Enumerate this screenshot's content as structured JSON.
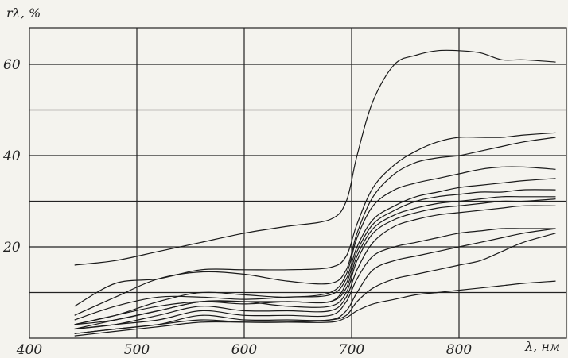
{
  "chart_data": {
    "type": "line",
    "title": "",
    "xlabel": "λ, нм",
    "ylabel": "rλ, %",
    "xlim": [
      400,
      900
    ],
    "ylim": [
      0,
      68
    ],
    "x_ticks": [
      {
        "value": 400,
        "label": "400"
      },
      {
        "value": 500,
        "label": "500"
      },
      {
        "value": 600,
        "label": "600"
      },
      {
        "value": 700,
        "label": "700"
      },
      {
        "value": 800,
        "label": "800"
      }
    ],
    "y_ticks": [
      {
        "value": 20,
        "label": "20"
      },
      {
        "value": 40,
        "label": "40"
      },
      {
        "value": 60,
        "label": "60"
      }
    ],
    "grid": true,
    "series": [
      {
        "x": [
          442,
          480,
          520,
          560,
          600,
          640,
          680,
          695,
          705,
          720,
          740,
          760,
          780,
          800,
          820,
          840,
          860,
          890
        ],
        "y": [
          16,
          17,
          19,
          21,
          23,
          24.5,
          26,
          30,
          40,
          52,
          60,
          62,
          63,
          63,
          62.5,
          61,
          61,
          60.5
        ]
      },
      {
        "x": [
          442,
          480,
          520,
          560,
          600,
          640,
          680,
          695,
          705,
          720,
          740,
          760,
          780,
          800,
          820,
          840,
          860,
          890
        ],
        "y": [
          7,
          12,
          13,
          15,
          15,
          15,
          15.5,
          18,
          25,
          33,
          38,
          41,
          43,
          44,
          44,
          44,
          44.5,
          45
        ]
      },
      {
        "x": [
          442,
          480,
          520,
          560,
          600,
          640,
          680,
          695,
          705,
          720,
          740,
          760,
          780,
          800,
          820,
          840,
          860,
          890
        ],
        "y": [
          5,
          9,
          13,
          14.5,
          14,
          12.5,
          12,
          15,
          23,
          31,
          36,
          38.5,
          39.5,
          40,
          41,
          42,
          43,
          44
        ]
      },
      {
        "x": [
          442,
          480,
          520,
          560,
          600,
          640,
          680,
          695,
          705,
          720,
          740,
          760,
          780,
          800,
          820,
          840,
          860,
          890
        ],
        "y": [
          3,
          5,
          8,
          10,
          9.5,
          9,
          10,
          14,
          22,
          29,
          32.5,
          34,
          35,
          36,
          37,
          37.5,
          37.5,
          37
        ]
      },
      {
        "x": [
          442,
          480,
          520,
          560,
          600,
          640,
          680,
          695,
          705,
          720,
          740,
          760,
          780,
          800,
          820,
          840,
          860,
          890
        ],
        "y": [
          4,
          7,
          9,
          9,
          8.5,
          9,
          9.5,
          13,
          20,
          26,
          29,
          31,
          32,
          33,
          33.5,
          34,
          34.5,
          35
        ]
      },
      {
        "x": [
          442,
          480,
          520,
          560,
          600,
          640,
          680,
          695,
          705,
          720,
          740,
          760,
          780,
          800,
          820,
          840,
          860,
          890
        ],
        "y": [
          3,
          5,
          7,
          8,
          7.5,
          8,
          8,
          12,
          19,
          25,
          28,
          30,
          31,
          31.5,
          32,
          32,
          32.5,
          32.5
        ]
      },
      {
        "x": [
          442,
          480,
          520,
          560,
          600,
          640,
          680,
          695,
          705,
          720,
          740,
          760,
          780,
          800,
          820,
          840,
          860,
          890
        ],
        "y": [
          2,
          4,
          6,
          8,
          8,
          8,
          8,
          11,
          18,
          24,
          27,
          28.5,
          29.5,
          30,
          30.5,
          31,
          31,
          31
        ]
      },
      {
        "x": [
          442,
          480,
          520,
          560,
          600,
          640,
          680,
          695,
          705,
          720,
          740,
          760,
          780,
          800,
          820,
          840,
          860,
          890
        ],
        "y": [
          3,
          4,
          6,
          8,
          8,
          7,
          7,
          10,
          17,
          23,
          26,
          27.5,
          28.5,
          29,
          29.5,
          30,
          30,
          30.5
        ]
      },
      {
        "x": [
          442,
          480,
          520,
          560,
          600,
          640,
          680,
          695,
          705,
          720,
          740,
          760,
          780,
          800,
          820,
          840,
          860,
          890
        ],
        "y": [
          2,
          3,
          5,
          7,
          6,
          6,
          6,
          9,
          15,
          21,
          24.5,
          26,
          27,
          27.5,
          28,
          28.5,
          29,
          29
        ]
      },
      {
        "x": [
          442,
          480,
          520,
          560,
          600,
          640,
          680,
          695,
          705,
          720,
          740,
          760,
          780,
          800,
          820,
          840,
          860,
          890
        ],
        "y": [
          2,
          3,
          4,
          6,
          5,
          5,
          5,
          8,
          13,
          18,
          20,
          21,
          22,
          23,
          23.5,
          24,
          24,
          24
        ]
      },
      {
        "x": [
          442,
          480,
          520,
          560,
          600,
          640,
          680,
          695,
          705,
          720,
          740,
          760,
          780,
          800,
          820,
          840,
          860,
          890
        ],
        "y": [
          1,
          2,
          3,
          5,
          4,
          4,
          4,
          6,
          10,
          15,
          17,
          18,
          19,
          20,
          21,
          22,
          23,
          24
        ]
      },
      {
        "x": [
          442,
          480,
          520,
          560,
          600,
          640,
          680,
          695,
          705,
          720,
          740,
          760,
          780,
          800,
          820,
          840,
          860,
          890
        ],
        "y": [
          1,
          2,
          3,
          4,
          3.5,
          3.5,
          4,
          5,
          8,
          11,
          13,
          14,
          15,
          16,
          17,
          19,
          21,
          23
        ]
      },
      {
        "x": [
          442,
          480,
          520,
          560,
          600,
          640,
          680,
          695,
          705,
          720,
          740,
          760,
          780,
          800,
          820,
          840,
          860,
          890
        ],
        "y": [
          0.5,
          1.5,
          2.5,
          3.5,
          3.5,
          3.5,
          3.5,
          4.5,
          6,
          7.5,
          8.5,
          9.5,
          10,
          10.5,
          11,
          11.5,
          12,
          12.5
        ]
      }
    ]
  }
}
